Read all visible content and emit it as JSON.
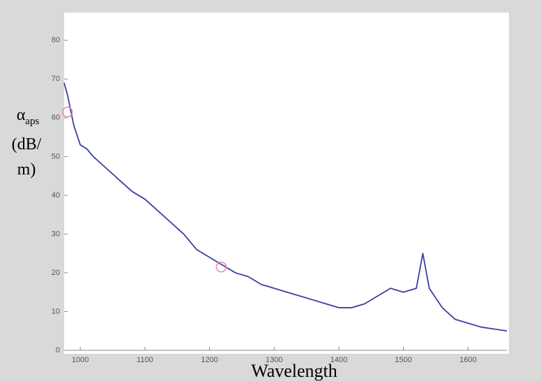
{
  "chart_data": {
    "type": "line",
    "ylabel_symbol": "α",
    "ylabel_subscript": "aps",
    "ylabel_unit_lines": [
      "(dB/",
      "m)"
    ],
    "xlabel": "Wavelength",
    "x": [
      975,
      980,
      985,
      990,
      1000,
      1010,
      1020,
      1040,
      1060,
      1080,
      1100,
      1120,
      1140,
      1160,
      1180,
      1200,
      1220,
      1240,
      1260,
      1280,
      1300,
      1320,
      1340,
      1360,
      1380,
      1400,
      1420,
      1440,
      1460,
      1480,
      1500,
      1520,
      1530,
      1540,
      1560,
      1580,
      1600,
      1620,
      1640,
      1660
    ],
    "series": [
      {
        "color": "#3b3fa0",
        "values": [
          69,
          66,
          62,
          58,
          53,
          52,
          50,
          47,
          44,
          41,
          39,
          36,
          33,
          30,
          26,
          24,
          22,
          20,
          19,
          17,
          16,
          15,
          14,
          13,
          12,
          11,
          11,
          12,
          14,
          16,
          15,
          16,
          25,
          16,
          11,
          8,
          7,
          6,
          5.5,
          5
        ]
      }
    ],
    "markers": {
      "color": "#e88a9a",
      "x": [
        980,
        1218
      ],
      "values": [
        61.5,
        21.5
      ]
    },
    "xlim": [
      975,
      1660
    ],
    "ylim": [
      0,
      85
    ],
    "xticks": [
      1000,
      1100,
      1200,
      1300,
      1400,
      1500,
      1600
    ],
    "yticks": [
      0,
      10,
      20,
      30,
      40,
      50,
      60,
      70,
      80
    ]
  }
}
